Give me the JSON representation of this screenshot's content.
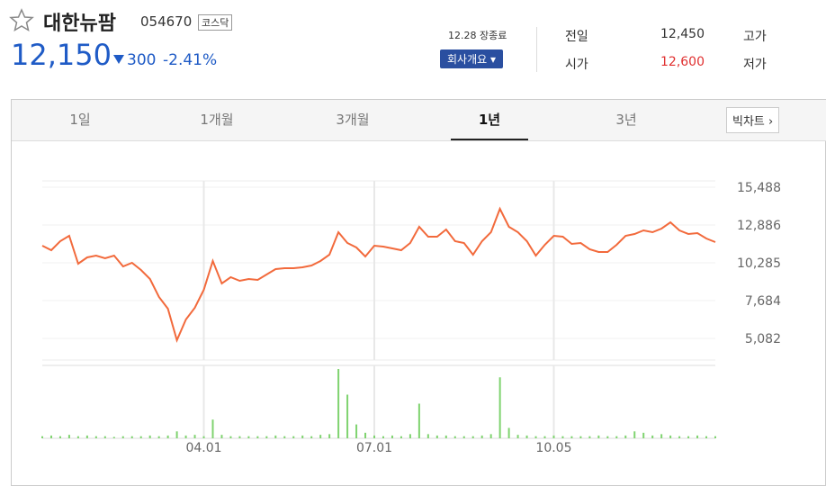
{
  "header": {
    "name": "대한뉴팜",
    "code": "054670",
    "market": "코스닥",
    "price": "12,150",
    "change": "300",
    "change_rate": "-2.41%",
    "status": "12.28 장종료",
    "company_button": "회사개요"
  },
  "summary": {
    "prev_label": "전일",
    "prev_value": "12,450",
    "high_label": "고가",
    "open_label": "시가",
    "open_value": "12,600",
    "low_label": "저가"
  },
  "tabs": [
    "1일",
    "1개월",
    "3개월",
    "1년",
    "3년"
  ],
  "active_tab": 3,
  "big_chart": "빅차트",
  "chart_data": [
    {
      "type": "line",
      "categories": [
        null,
        null,
        null,
        null,
        null,
        null,
        null,
        null,
        null,
        null,
        null,
        null,
        null,
        null,
        null,
        null,
        null,
        null,
        "04.01",
        null,
        null,
        null,
        null,
        null,
        null,
        null,
        null,
        null,
        null,
        null,
        null,
        null,
        null,
        null,
        null,
        null,
        null,
        "07.01",
        null,
        null,
        null,
        null,
        null,
        null,
        null,
        null,
        null,
        null,
        null,
        null,
        null,
        null,
        null,
        null,
        null,
        null,
        null,
        "10.05",
        null,
        null,
        null,
        null,
        null,
        null,
        null,
        null,
        null,
        null,
        null,
        null,
        null,
        null,
        null,
        null,
        null,
        null
      ],
      "series": [
        {
          "color": "#f26a3c",
          "values": [
            11461,
            11152,
            11771,
            12143,
            10222,
            10656,
            10780,
            10594,
            10780,
            10036,
            10284,
            9789,
            9169,
            7930,
            7125,
            4957,
            6381,
            7187,
            8426,
            10408,
            8859,
            9293,
            9045,
            9169,
            9107,
            9479,
            9850,
            9912,
            9912,
            9974,
            10098,
            10408,
            10842,
            12390,
            11647,
            11337,
            10718,
            11461,
            11399,
            11275,
            11152,
            11647,
            12762,
            12081,
            12081,
            12576,
            11771,
            11647,
            10842,
            11771,
            12390,
            14001,
            12762,
            12390,
            11771,
            10780,
            11523,
            12143,
            12081,
            11585,
            11647,
            11213,
            11028,
            11028,
            11523,
            12143,
            12267,
            12514,
            12390,
            12638,
            13072,
            12514,
            12267,
            12329,
            11957,
            11709
          ]
        }
      ],
      "ylim": [
        3595,
        15922
      ],
      "yticks": [
        {
          "value": 15488,
          "label": "15,488"
        },
        {
          "value": 12886,
          "label": "12,886"
        },
        {
          "value": 10285,
          "label": "10,285"
        },
        {
          "value": 7684,
          "label": "7,684"
        },
        {
          "value": 5082,
          "label": "5,082"
        }
      ],
      "grid": true
    },
    {
      "type": "bar",
      "color": "#7fd36f",
      "ylim": [
        0,
        100
      ],
      "values": [
        3,
        4,
        3,
        5,
        3,
        4,
        3,
        3,
        2,
        3,
        3,
        3,
        4,
        3,
        4,
        10,
        4,
        5,
        3,
        27,
        5,
        3,
        3,
        3,
        3,
        3,
        4,
        3,
        3,
        4,
        3,
        5,
        6,
        100,
        63,
        20,
        8,
        4,
        3,
        4,
        3,
        6,
        50,
        6,
        4,
        4,
        3,
        3,
        3,
        4,
        6,
        88,
        15,
        5,
        4,
        3,
        3,
        4,
        3,
        3,
        3,
        3,
        4,
        3,
        3,
        4,
        10,
        8,
        4,
        6,
        4,
        3,
        3,
        4,
        3,
        3
      ]
    }
  ]
}
